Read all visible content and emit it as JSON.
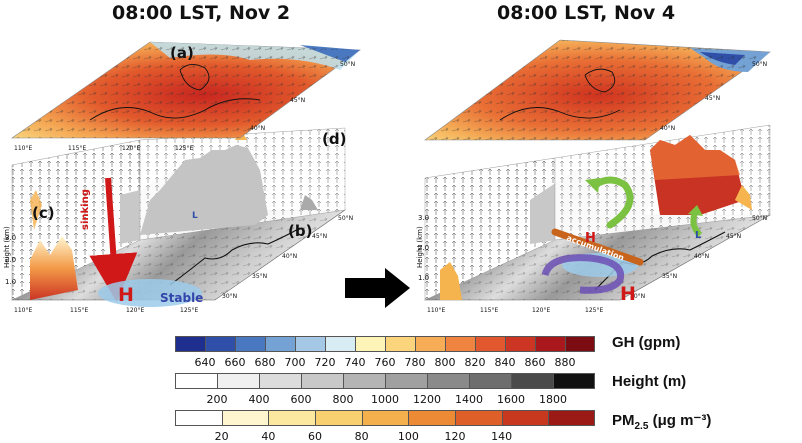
{
  "panels": {
    "left_title": "08:00 LST, Nov 2",
    "right_title": "08:00 LST, Nov 4",
    "labels": {
      "a": "(a)",
      "b": "(b)",
      "c": "(c)",
      "d": "(d)"
    },
    "lon_ticks": [
      "110°E",
      "115°E",
      "120°E",
      "125°E"
    ],
    "lat_ticks": [
      "30°N",
      "35°N",
      "40°N",
      "45°N",
      "50°N"
    ],
    "height_axis_label": "Height (km)",
    "height_ticks": [
      "1.0",
      "2.0",
      "3.0"
    ],
    "annotations": {
      "sinking": "sinking",
      "high": "H",
      "low": "L",
      "stable": "Stable",
      "accumulation": "accumulation"
    }
  },
  "colorbars": [
    {
      "id": "gh",
      "label": "GH (gpm)",
      "ticks": [
        "640",
        "660",
        "680",
        "700",
        "720",
        "740",
        "760",
        "780",
        "800",
        "820",
        "840",
        "860",
        "880"
      ],
      "colors": [
        "#1f2f8f",
        "#2f4fa8",
        "#4a78c0",
        "#74a2d4",
        "#a4c8e6",
        "#d8ecf4",
        "#fff4b8",
        "#fbd47c",
        "#f7ad56",
        "#ef8440",
        "#e2582e",
        "#cc3424",
        "#a8181c",
        "#7a0c12"
      ]
    },
    {
      "id": "height",
      "label": "Height (m)",
      "ticks": [
        "200",
        "400",
        "600",
        "800",
        "1000",
        "1200",
        "1400",
        "1600",
        "1800"
      ],
      "colors": [
        "#ffffff",
        "#f0f0f0",
        "#dcdcdc",
        "#c8c8c8",
        "#b4b4b4",
        "#a0a0a0",
        "#8a8a8a",
        "#6e6e6e",
        "#4a4a4a",
        "#111111"
      ]
    },
    {
      "id": "pm25",
      "label_main": "PM",
      "label_sub": "2.5",
      "label_unit": " (μg m⁻³)",
      "ticks": [
        "20",
        "40",
        "60",
        "80",
        "100",
        "120",
        "140"
      ],
      "colors": [
        "#ffffff",
        "#fff6d0",
        "#fde8a0",
        "#f9d070",
        "#f4b04c",
        "#ec8a36",
        "#de6028",
        "#c8381f",
        "#9c1a16"
      ]
    }
  ]
}
